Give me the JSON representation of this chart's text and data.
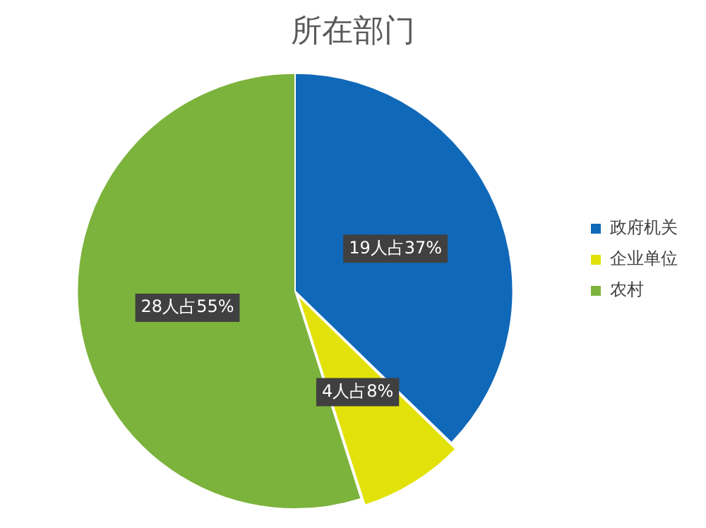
{
  "chart_data": {
    "type": "pie",
    "title": "所在部门",
    "categories": [
      "政府机关",
      "企业单位",
      "农村"
    ],
    "values": [
      19,
      4,
      28
    ],
    "value_labels": [
      "19人占37%",
      "4人占8%",
      "28人占55%"
    ],
    "colors": [
      "#1068b8",
      "#e2e20a",
      "#7cb33c"
    ],
    "legend": "right"
  }
}
